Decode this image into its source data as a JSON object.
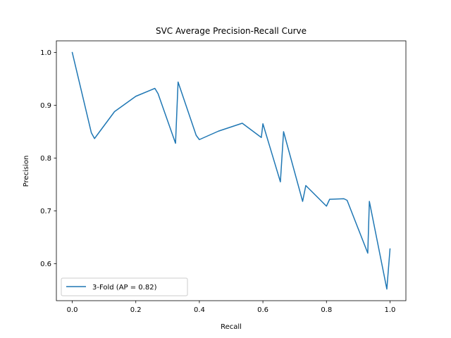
{
  "chart_data": {
    "type": "line",
    "title": "SVC Average Precision-Recall Curve",
    "xlabel": "Recall",
    "ylabel": "Precision",
    "xlim": [
      -0.05,
      1.05
    ],
    "ylim": [
      0.53,
      1.022
    ],
    "xticks": [
      0.0,
      0.2,
      0.4,
      0.6,
      0.8,
      1.0
    ],
    "yticks": [
      0.6,
      0.7,
      0.8,
      0.9,
      1.0
    ],
    "xtick_labels": [
      "0.0",
      "0.2",
      "0.4",
      "0.6",
      "0.8",
      "1.0"
    ],
    "ytick_labels": [
      "0.6",
      "0.7",
      "0.8",
      "0.9",
      "1.0"
    ],
    "grid": false,
    "legend_position": "lower-left",
    "series": [
      {
        "name": "3-Fold (AP = 0.82)",
        "color": "#1f77b4",
        "x": [
          0.0,
          0.06,
          0.07,
          0.133,
          0.2,
          0.26,
          0.27,
          0.325,
          0.333,
          0.39,
          0.4,
          0.46,
          0.525,
          0.535,
          0.595,
          0.6,
          0.655,
          0.665,
          0.725,
          0.735,
          0.8,
          0.81,
          0.855,
          0.865,
          0.93,
          0.935,
          0.99,
          1.0
        ],
        "y": [
          1.0,
          0.848,
          0.837,
          0.888,
          0.917,
          0.932,
          0.922,
          0.828,
          0.944,
          0.843,
          0.835,
          0.851,
          0.864,
          0.866,
          0.839,
          0.865,
          0.755,
          0.85,
          0.718,
          0.748,
          0.709,
          0.722,
          0.723,
          0.72,
          0.62,
          0.718,
          0.552,
          0.628
        ]
      }
    ]
  }
}
